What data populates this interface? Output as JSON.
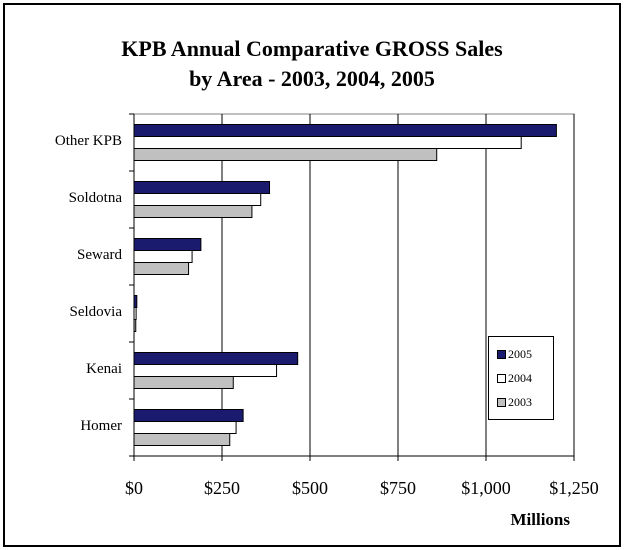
{
  "chart_data": {
    "type": "bar",
    "orientation": "horizontal",
    "title_line1": "KPB Annual Comparative GROSS Sales",
    "title_line2": "by Area - 2003, 2004, 2005",
    "categories": [
      "Other KPB",
      "Soldotna",
      "Seward",
      "Seldovia",
      "Kenai",
      "Homer"
    ],
    "series": [
      {
        "name": "2005",
        "color": "#1a1a6e",
        "values": [
          1200,
          385,
          190,
          8,
          465,
          310
        ]
      },
      {
        "name": "2004",
        "color": "#ffffff",
        "values": [
          1100,
          360,
          165,
          6,
          405,
          290
        ]
      },
      {
        "name": "2003",
        "color": "#c0c0c0",
        "values": [
          860,
          335,
          155,
          5,
          282,
          272
        ]
      }
    ],
    "x_ticks": [
      "$0",
      "$250",
      "$500",
      "$750",
      "$1,000",
      "$1,250"
    ],
    "xlim": [
      0,
      1250
    ],
    "xlabel": "Millions",
    "grid": true,
    "legend_position": "right"
  }
}
